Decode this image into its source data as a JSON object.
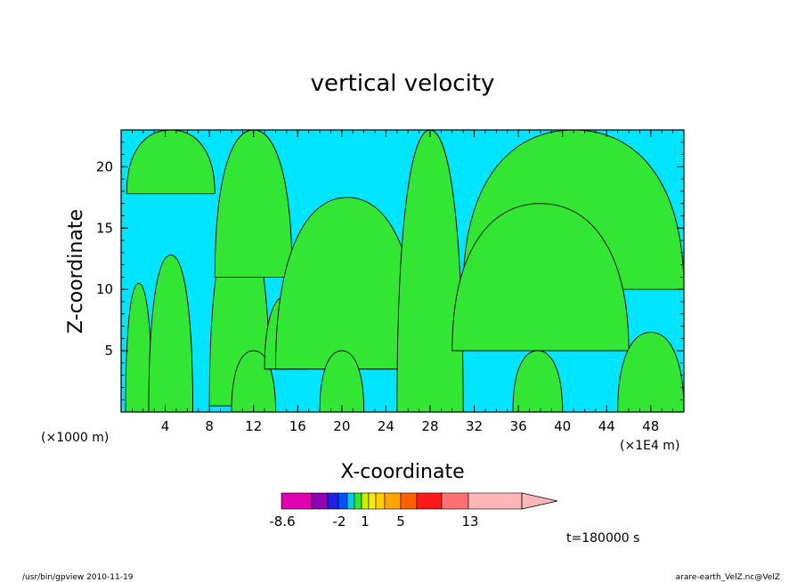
{
  "chart_data": {
    "type": "heatmap",
    "title": "vertical velocity",
    "xlabel": "X-coordinate",
    "ylabel": "Z-coordinate",
    "x_unit_left": "(×1000 m)",
    "x_unit_right": "(×1E4 m)",
    "xlim": [
      0,
      51
    ],
    "ylim": [
      0,
      23
    ],
    "x_ticks": [
      "4",
      "8",
      "12",
      "16",
      "20",
      "24",
      "28",
      "32",
      "36",
      "40",
      "44",
      "48"
    ],
    "y_ticks": [
      "5",
      "10",
      "15",
      "20"
    ],
    "time_label": "t=180000 s",
    "background_color": "#00e5ff",
    "positive_color": "#33e633",
    "contour_color": "#000000",
    "colorbar": {
      "colors": [
        "#e000b0",
        "#9000b0",
        "#2020e0",
        "#0050ff",
        "#00c8e6",
        "#33e633",
        "#c8f000",
        "#ffea00",
        "#ffd000",
        "#ffa500",
        "#ff6000",
        "#ff1a1a",
        "#ff7070",
        "#ffb6b6"
      ],
      "labels": [
        "-8.6",
        "-2",
        "1",
        "5",
        "13"
      ]
    },
    "green_regions": [
      {
        "name": "top-left-band",
        "x": [
          0.5,
          8.5
        ],
        "z": [
          17.8,
          23.0
        ]
      },
      {
        "name": "left-low-band",
        "x": [
          0.4,
          2.8
        ],
        "z": [
          0.0,
          10.5
        ]
      },
      {
        "name": "updraft-4km",
        "x": [
          2.5,
          6.5
        ],
        "z": [
          0.0,
          12.8
        ]
      },
      {
        "name": "left-tilt-1",
        "x": [
          8.0,
          13.5
        ],
        "z": [
          0.5,
          16.0
        ]
      },
      {
        "name": "upper-left-band",
        "x": [
          8.5,
          15.5
        ],
        "z": [
          11.0,
          23.0
        ]
      },
      {
        "name": "low-12km",
        "x": [
          10.0,
          14.0
        ],
        "z": [
          0.0,
          5.0
        ]
      },
      {
        "name": "low-15km",
        "x": [
          13.0,
          17.0
        ],
        "z": [
          3.5,
          9.5
        ]
      },
      {
        "name": "arch-center-left",
        "x": [
          14.0,
          27.0
        ],
        "z": [
          3.5,
          17.5
        ]
      },
      {
        "name": "low-20km",
        "x": [
          18.0,
          22.0
        ],
        "z": [
          0.0,
          5.0
        ]
      },
      {
        "name": "updraft-28km",
        "x": [
          25.0,
          31.0
        ],
        "z": [
          0.0,
          23.0
        ]
      },
      {
        "name": "top-right-fan",
        "x": [
          31.0,
          51.0
        ],
        "z": [
          10.0,
          23.0
        ]
      },
      {
        "name": "arch-right",
        "x": [
          30.0,
          46.0
        ],
        "z": [
          5.0,
          17.0
        ]
      },
      {
        "name": "low-36km",
        "x": [
          35.5,
          40.0
        ],
        "z": [
          0.0,
          5.0
        ]
      },
      {
        "name": "right-edge",
        "x": [
          45.0,
          51.0
        ],
        "z": [
          0.0,
          6.5
        ]
      }
    ]
  },
  "footer": {
    "left": "/usr/bin/gpview   2010-11-19",
    "right": "arare-earth_VelZ.nc@VelZ"
  }
}
